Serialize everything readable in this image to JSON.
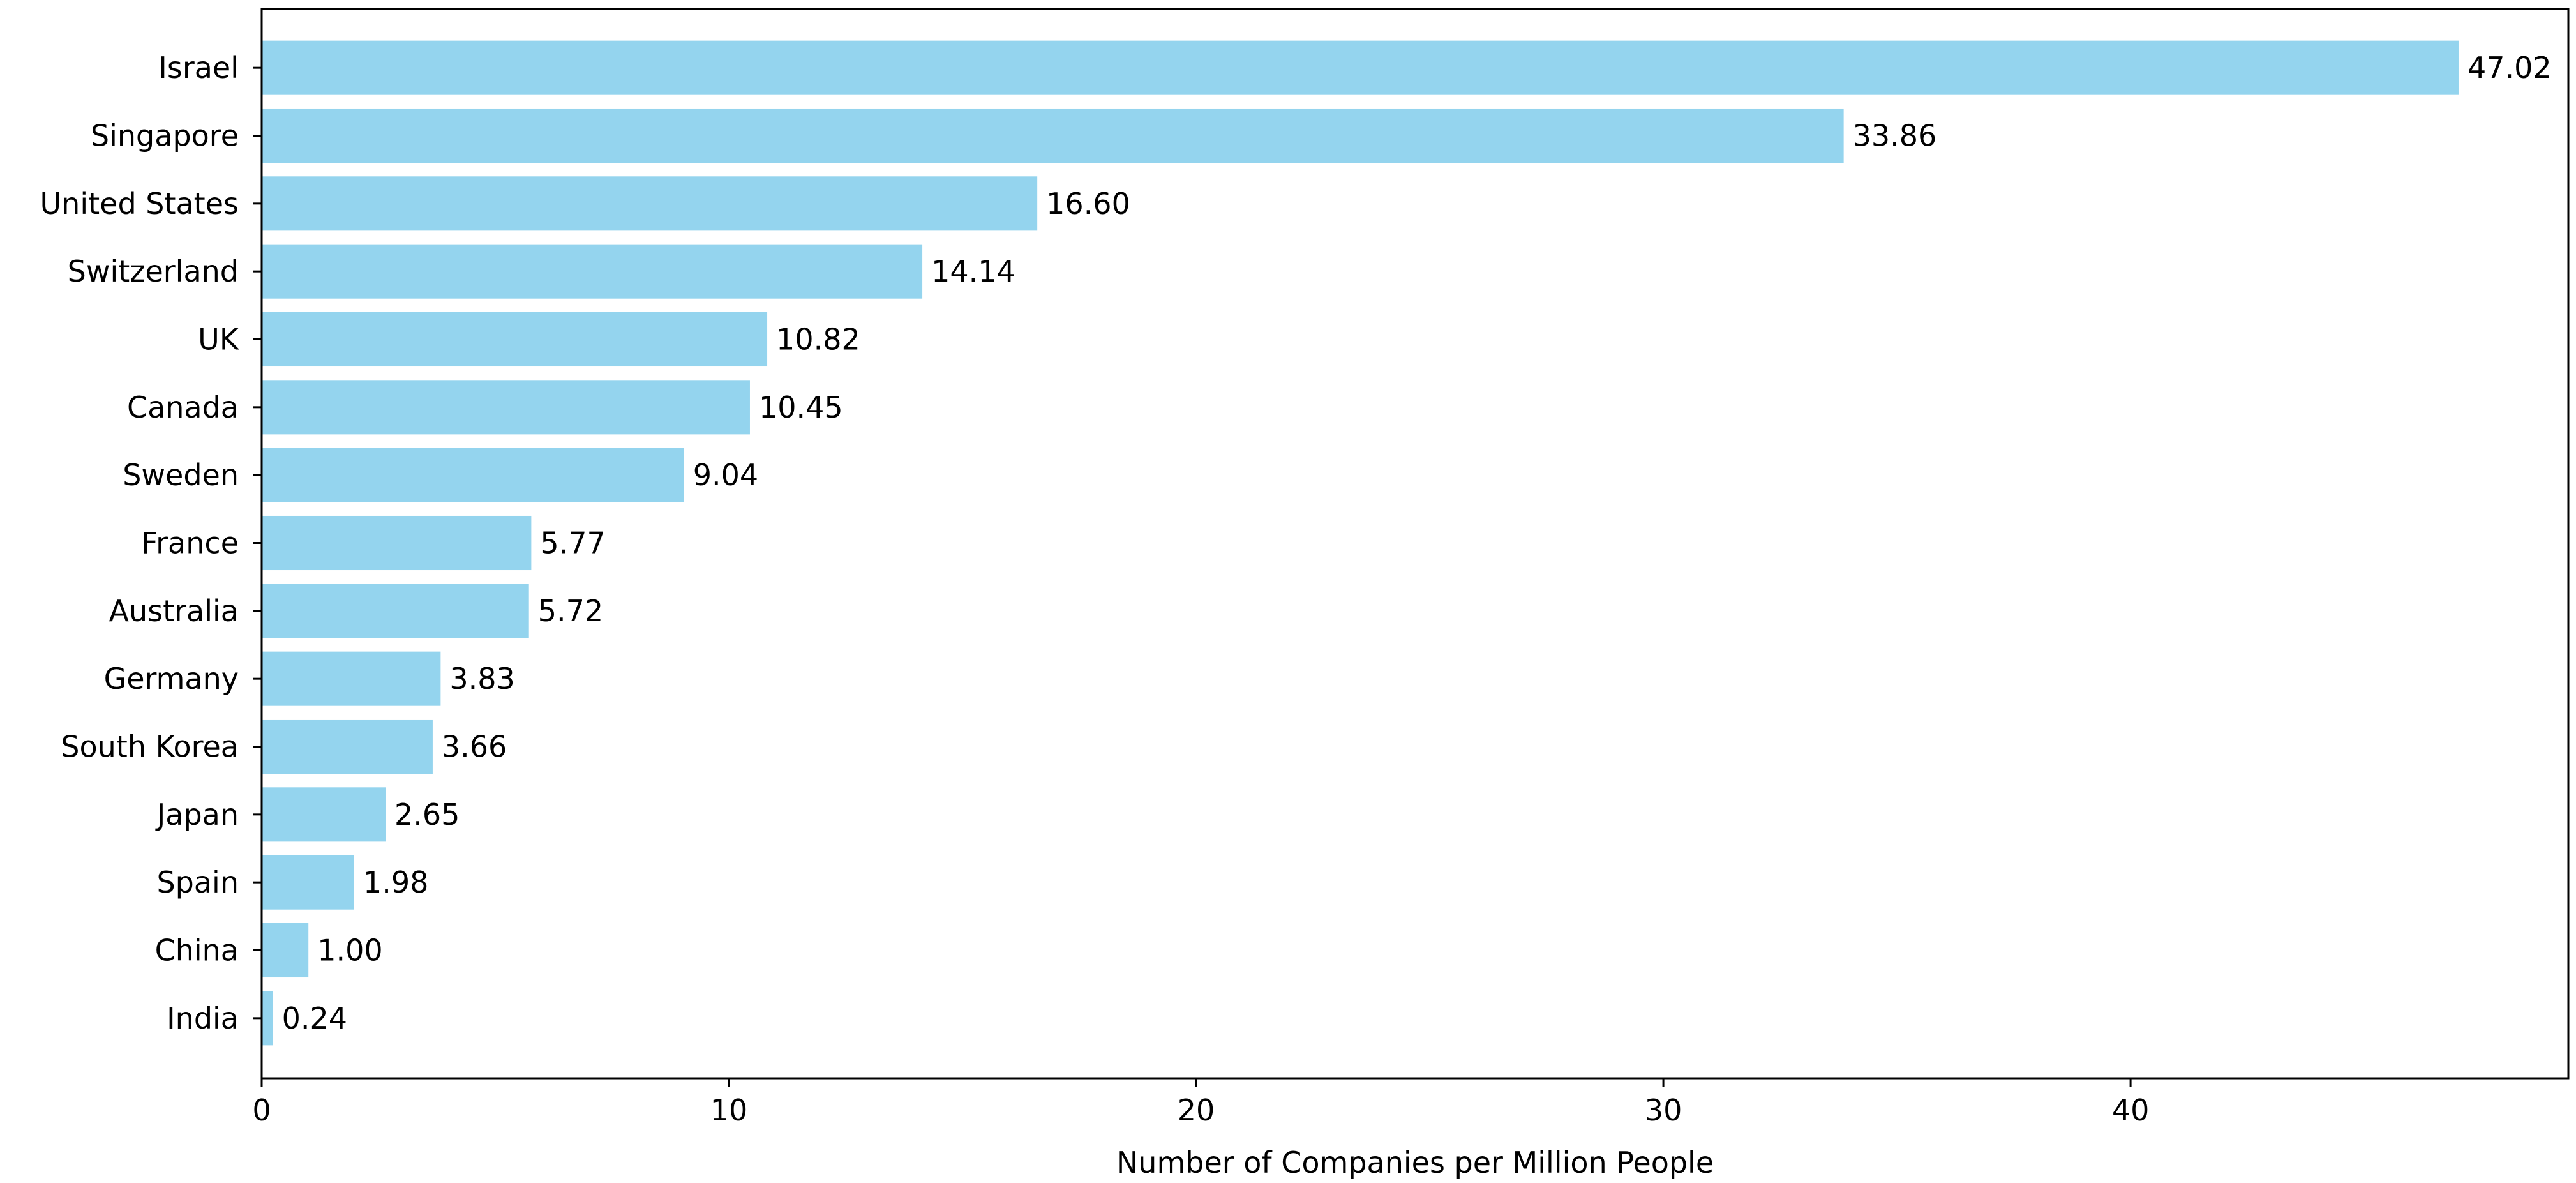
{
  "chart_data": {
    "type": "bar",
    "orientation": "horizontal",
    "title": "",
    "xlabel": "Number of Companies per Million People",
    "ylabel": "",
    "xlim": [
      0,
      49.37
    ],
    "xticks": [
      0,
      10,
      20,
      30,
      40
    ],
    "bar_color": "#94D4EE",
    "grid": false,
    "categories": [
      "Israel",
      "Singapore",
      "United States",
      "Switzerland",
      "UK",
      "Canada",
      "Sweden",
      "France",
      "Australia",
      "Germany",
      "South Korea",
      "Japan",
      "Spain",
      "China",
      "India"
    ],
    "values": [
      47.02,
      33.86,
      16.6,
      14.14,
      10.82,
      10.45,
      9.04,
      5.77,
      5.72,
      3.83,
      3.66,
      2.65,
      1.98,
      1.0,
      0.24
    ],
    "value_labels": [
      "47.02",
      "33.86",
      "16.60",
      "14.14",
      "10.82",
      "10.45",
      "9.04",
      "5.77",
      "5.72",
      "3.83",
      "3.66",
      "2.65",
      "1.98",
      "1.00",
      "0.24"
    ]
  }
}
